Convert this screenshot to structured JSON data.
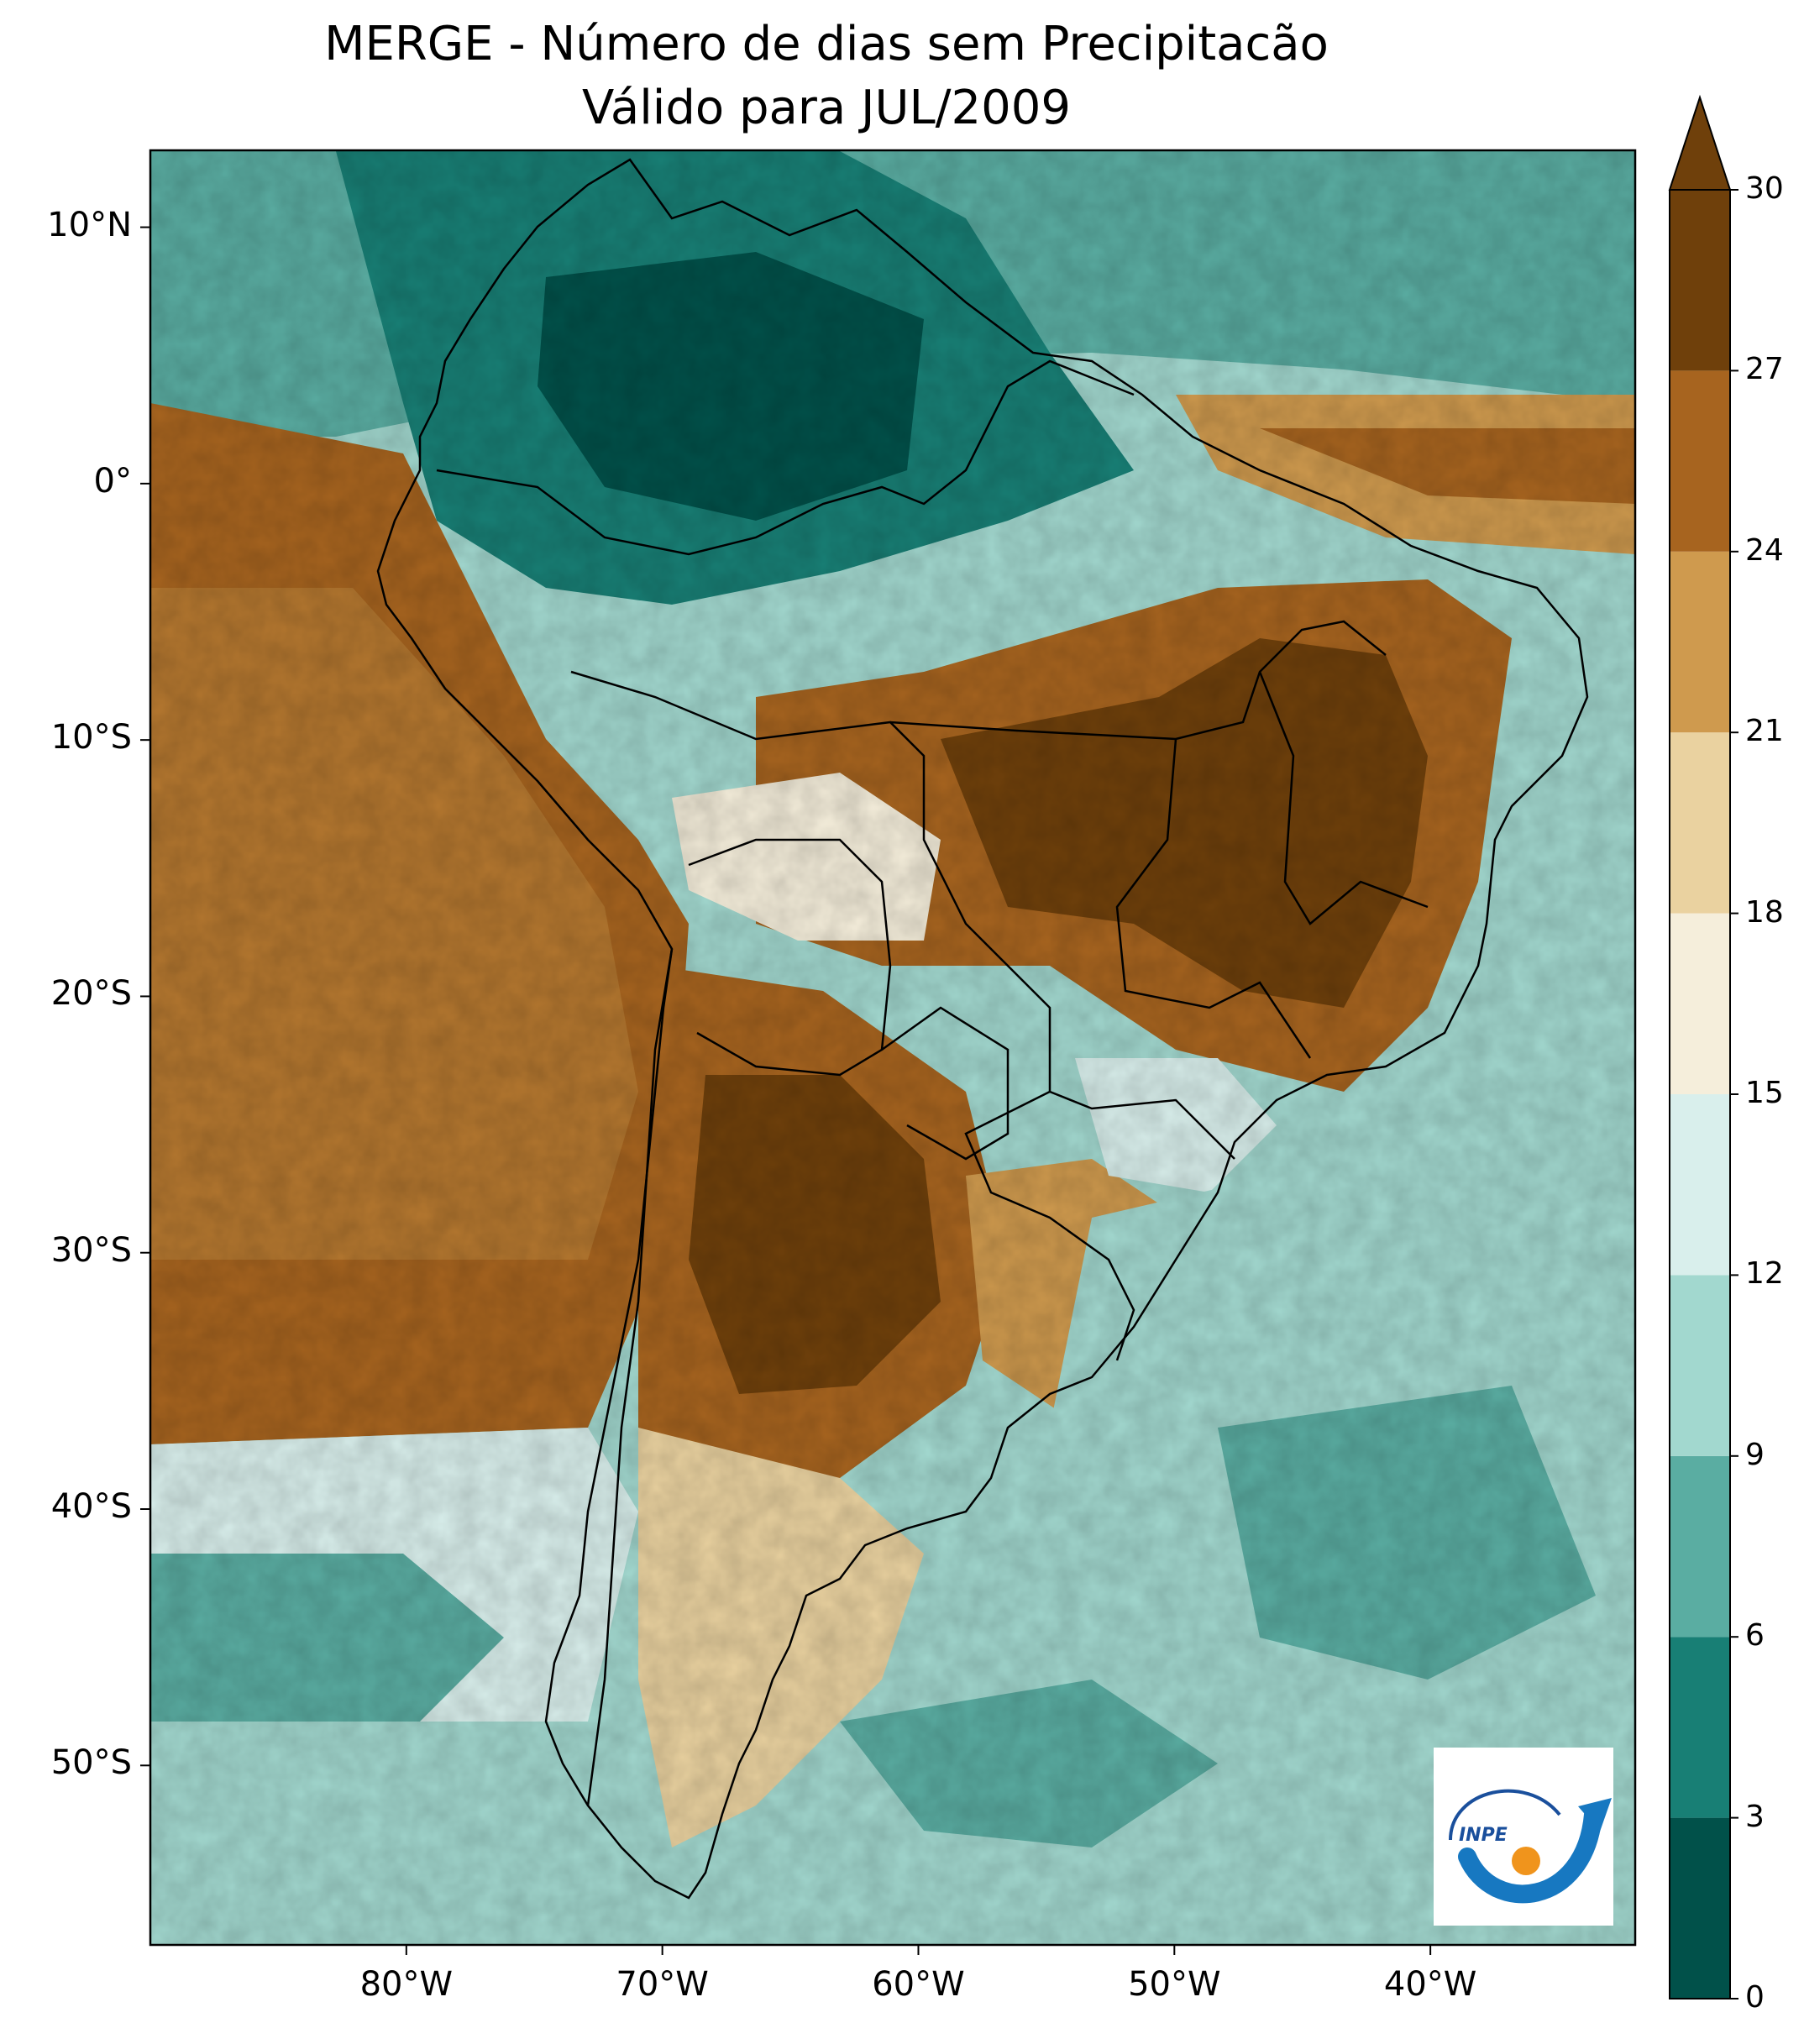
{
  "title": {
    "line1": "MERGE - Número de dias sem Precipitacão",
    "line2": "Válido para JUL/2009"
  },
  "map": {
    "lat_ticks": [
      "10°N",
      "0°",
      "10°S",
      "20°S",
      "30°S",
      "40°S",
      "50°S"
    ],
    "lon_ticks": [
      "80°W",
      "70°W",
      "60°W",
      "50°W",
      "40°W"
    ],
    "lat_values": [
      10,
      0,
      -10,
      -20,
      -30,
      -40,
      -50
    ],
    "lon_values": [
      -80,
      -70,
      -60,
      -50,
      -40
    ],
    "extent": {
      "lon_min": -90,
      "lon_max": -32,
      "lat_min": -57,
      "lat_max": 13
    }
  },
  "colorbar": {
    "levels": [
      0,
      3,
      6,
      9,
      12,
      15,
      18,
      21,
      24,
      27,
      30
    ],
    "labels": [
      "0",
      "3",
      "6",
      "9",
      "12",
      "15",
      "18",
      "21",
      "24",
      "27",
      "30"
    ],
    "colors": [
      "#01514a",
      "#187f75",
      "#5aada2",
      "#a2d8cf",
      "#d9efec",
      "#f5eedb",
      "#ead2a0",
      "#cf9a4e",
      "#a7641f",
      "#6f400b"
    ],
    "extend": "max"
  },
  "logo": {
    "text": "INPE"
  },
  "colors": {
    "dry_max": "#6f400b",
    "wet_min": "#01514a",
    "line": "#000000"
  }
}
